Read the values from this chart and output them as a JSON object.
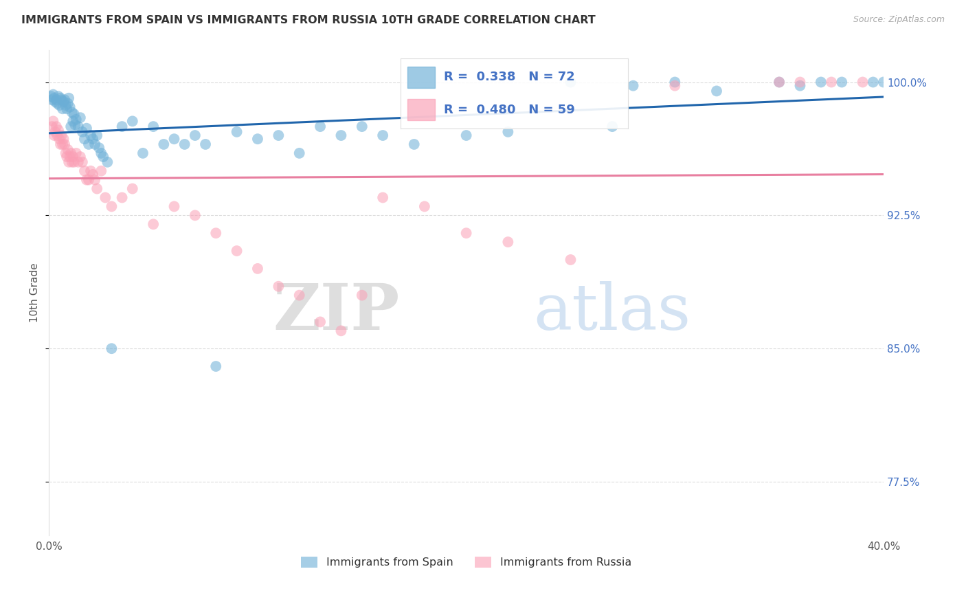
{
  "title": "IMMIGRANTS FROM SPAIN VS IMMIGRANTS FROM RUSSIA 10TH GRADE CORRELATION CHART",
  "source": "Source: ZipAtlas.com",
  "ylabel": "10th Grade",
  "xlim": [
    0.0,
    40.0
  ],
  "ylim": [
    74.5,
    101.8
  ],
  "x_ticks": [
    0.0,
    5.0,
    10.0,
    15.0,
    20.0,
    25.0,
    30.0,
    35.0,
    40.0
  ],
  "y_ticks_right": [
    77.5,
    85.0,
    92.5,
    100.0
  ],
  "y_tick_labels_right": [
    "77.5%",
    "85.0%",
    "92.5%",
    "100.0%"
  ],
  "legend_R_spain": "0.338",
  "legend_N_spain": "72",
  "legend_R_russia": "0.480",
  "legend_N_russia": "59",
  "color_spain": "#6baed6",
  "color_russia": "#fa9fb5",
  "color_trendline_spain": "#2166ac",
  "color_trendline_russia": "#e87fa0",
  "background_color": "#ffffff",
  "grid_color": "#cccccc",
  "watermark_zip": "ZIP",
  "watermark_atlas": "atlas",
  "spain_x": [
    0.1,
    0.15,
    0.2,
    0.25,
    0.3,
    0.35,
    0.4,
    0.45,
    0.5,
    0.55,
    0.6,
    0.65,
    0.7,
    0.75,
    0.8,
    0.85,
    0.9,
    0.95,
    1.0,
    1.05,
    1.1,
    1.15,
    1.2,
    1.25,
    1.3,
    1.4,
    1.5,
    1.6,
    1.7,
    1.8,
    1.9,
    2.0,
    2.1,
    2.2,
    2.3,
    2.4,
    2.5,
    2.6,
    2.8,
    3.0,
    3.5,
    4.0,
    4.5,
    5.0,
    5.5,
    6.0,
    6.5,
    7.0,
    7.5,
    8.0,
    9.0,
    10.0,
    11.0,
    12.0,
    13.0,
    14.0,
    15.0,
    16.0,
    17.5,
    20.0,
    22.0,
    25.0,
    27.0,
    28.0,
    30.0,
    32.0,
    35.0,
    36.0,
    37.0,
    38.0,
    39.5,
    40.0
  ],
  "spain_y": [
    99.2,
    99.0,
    99.3,
    99.1,
    98.9,
    99.0,
    98.8,
    99.2,
    98.7,
    99.1,
    99.0,
    98.5,
    98.9,
    99.0,
    98.7,
    98.5,
    98.8,
    99.1,
    98.6,
    97.5,
    98.3,
    97.8,
    98.2,
    97.6,
    97.9,
    97.5,
    98.0,
    97.2,
    96.8,
    97.4,
    96.5,
    97.0,
    96.8,
    96.5,
    97.0,
    96.3,
    96.0,
    95.8,
    95.5,
    85.0,
    97.5,
    97.8,
    96.0,
    97.5,
    96.5,
    96.8,
    96.5,
    97.0,
    96.5,
    84.0,
    97.2,
    96.8,
    97.0,
    96.0,
    97.5,
    97.0,
    97.5,
    97.0,
    96.5,
    97.0,
    97.2,
    100.0,
    97.5,
    99.8,
    100.0,
    99.5,
    100.0,
    99.8,
    100.0,
    100.0,
    100.0,
    100.0
  ],
  "russia_x": [
    0.15,
    0.2,
    0.25,
    0.3,
    0.35,
    0.4,
    0.45,
    0.5,
    0.55,
    0.6,
    0.65,
    0.7,
    0.75,
    0.8,
    0.85,
    0.9,
    0.95,
    1.0,
    1.05,
    1.1,
    1.15,
    1.2,
    1.3,
    1.4,
    1.5,
    1.6,
    1.7,
    1.8,
    1.9,
    2.0,
    2.1,
    2.2,
    2.3,
    2.5,
    2.7,
    3.0,
    3.5,
    4.0,
    5.0,
    6.0,
    7.0,
    8.0,
    9.0,
    10.0,
    11.0,
    12.0,
    13.0,
    14.0,
    15.0,
    16.0,
    18.0,
    20.0,
    22.0,
    25.0,
    30.0,
    35.0,
    36.0,
    37.5,
    39.0
  ],
  "russia_y": [
    97.5,
    97.8,
    97.0,
    97.2,
    97.5,
    97.0,
    97.3,
    96.8,
    96.5,
    97.0,
    96.5,
    96.8,
    96.5,
    96.0,
    95.8,
    96.2,
    95.5,
    95.8,
    96.0,
    95.5,
    95.8,
    95.5,
    96.0,
    95.5,
    95.8,
    95.5,
    95.0,
    94.5,
    94.5,
    95.0,
    94.8,
    94.5,
    94.0,
    95.0,
    93.5,
    93.0,
    93.5,
    94.0,
    92.0,
    93.0,
    92.5,
    91.5,
    90.5,
    89.5,
    88.5,
    88.0,
    86.5,
    86.0,
    88.0,
    93.5,
    93.0,
    91.5,
    91.0,
    90.0,
    99.8,
    100.0,
    100.0,
    100.0,
    100.0
  ]
}
